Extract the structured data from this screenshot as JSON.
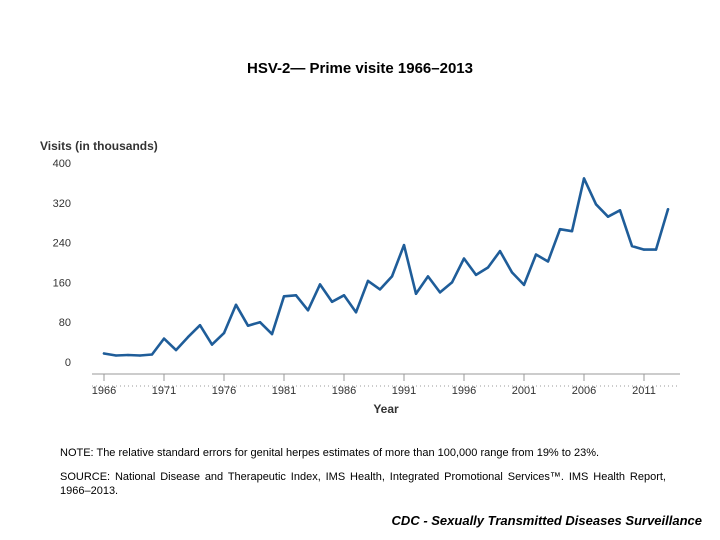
{
  "title": "HSV-2— Prime visite 1966–2013",
  "chart_data": {
    "type": "line",
    "ylabel": "Visits (in thousands)",
    "xlabel": "Year",
    "ylim": [
      0,
      400
    ],
    "yticks": [
      "0",
      "80",
      "160",
      "240",
      "320",
      "400"
    ],
    "xticks": [
      "1966",
      "1971",
      "1976",
      "1981",
      "1986",
      "1991",
      "1996",
      "2001",
      "2006",
      "2011"
    ],
    "xlim": [
      1966,
      2013
    ],
    "series": [
      {
        "name": "Visits",
        "color": "#1f5d99",
        "x": [
          1966,
          1967,
          1968,
          1969,
          1970,
          1971,
          1972,
          1973,
          1974,
          1975,
          1976,
          1977,
          1978,
          1979,
          1980,
          1981,
          1982,
          1983,
          1984,
          1985,
          1986,
          1987,
          1988,
          1989,
          1990,
          1991,
          1992,
          1993,
          1994,
          1995,
          1996,
          1997,
          1998,
          1999,
          2000,
          2001,
          2002,
          2003,
          2004,
          2005,
          2006,
          2007,
          2008,
          2009,
          2010,
          2011,
          2012,
          2013
        ],
        "values": [
          17,
          13,
          14,
          13,
          15,
          47,
          24,
          50,
          74,
          35,
          58,
          115,
          73,
          80,
          56,
          132,
          134,
          104,
          156,
          121,
          134,
          100,
          163,
          146,
          172,
          235,
          137,
          172,
          140,
          160,
          208,
          175,
          190,
          223,
          180,
          155,
          216,
          202,
          267,
          263,
          369,
          317,
          292,
          305,
          233,
          226,
          226,
          307
        ]
      }
    ]
  },
  "note": "NOTE: The relative standard errors for genital herpes estimates of more than 100,000 range from 19% to 23%.",
  "source": "SOURCE: National Disease and Therapeutic Index, IMS Health, Integrated Promotional Services™. IMS Health Report, 1966–2013.",
  "footer": "CDC - Sexually Transmitted Diseases Surveillance"
}
